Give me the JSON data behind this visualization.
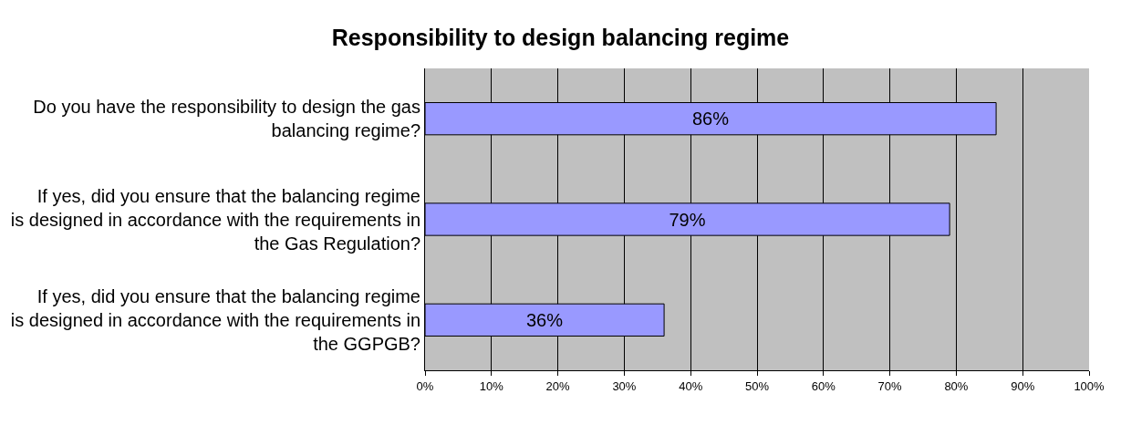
{
  "chart_data": {
    "type": "bar",
    "orientation": "horizontal",
    "title": "Responsibility to design balancing regime",
    "categories": [
      "Do you have the responsibility to design the gas balancing regime?",
      "If yes, did you ensure that the balancing regime is designed in accordance with the requirements in the Gas Regulation?",
      "If yes, did you ensure that the balancing regime is designed in accordance with the requirements in the GGPGB?"
    ],
    "values": [
      86,
      79,
      36
    ],
    "value_labels": [
      "86%",
      "79%",
      "36%"
    ],
    "color": "#9999ff",
    "xlim": [
      0,
      100
    ],
    "xticks": [
      {
        "value": 0,
        "label": "0%"
      },
      {
        "value": 10,
        "label": "10%"
      },
      {
        "value": 20,
        "label": "20%"
      },
      {
        "value": 30,
        "label": "30%"
      },
      {
        "value": 40,
        "label": "40%"
      },
      {
        "value": 50,
        "label": "50%"
      },
      {
        "value": 60,
        "label": "60%"
      },
      {
        "value": 70,
        "label": "70%"
      },
      {
        "value": 80,
        "label": "80%"
      },
      {
        "value": 90,
        "label": "90%"
      },
      {
        "value": 100,
        "label": "100%"
      }
    ],
    "grid": "x",
    "legend": false
  }
}
